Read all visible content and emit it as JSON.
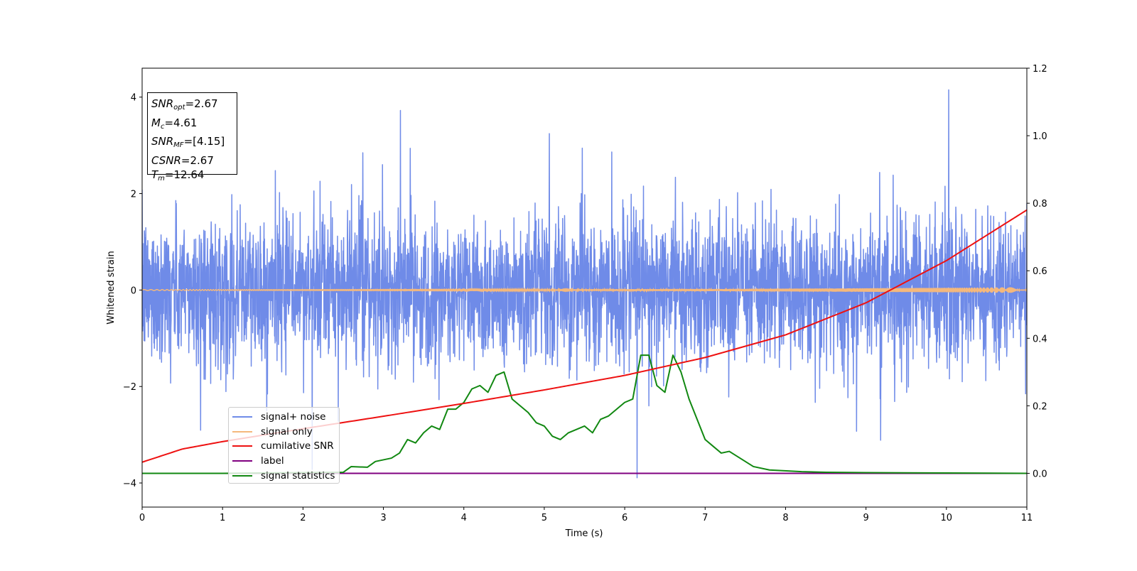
{
  "chart_data": {
    "type": "line",
    "xlabel": "Time (s)",
    "ylabel": "Whitened strain",
    "xlim": [
      0,
      11
    ],
    "ylim_left": [
      -4.5,
      4.6
    ],
    "ylim_right": [
      -0.1,
      1.2
    ],
    "x_ticks": [
      "0",
      "1",
      "2",
      "3",
      "4",
      "5",
      "6",
      "7",
      "8",
      "9",
      "10",
      "11"
    ],
    "y_left_ticks": [
      {
        "value": 4,
        "label": "4"
      },
      {
        "value": 2,
        "label": "2"
      },
      {
        "value": 0,
        "label": "0"
      },
      {
        "value": -2,
        "label": "−2"
      },
      {
        "value": -4,
        "label": "−4"
      }
    ],
    "y_right_ticks": [
      {
        "value": 1.2,
        "label": "1.2"
      },
      {
        "value": 1.0,
        "label": "1.0"
      },
      {
        "value": 0.8,
        "label": "0.8"
      },
      {
        "value": 0.6,
        "label": "0.6"
      },
      {
        "value": 0.4,
        "label": "0.4"
      },
      {
        "value": 0.2,
        "label": "0.2"
      },
      {
        "value": 0.0,
        "label": "0.0"
      }
    ],
    "legend_placement": "lower-left",
    "series": [
      {
        "name": "signal+ noise",
        "axis": "left",
        "color": "#6f8be8",
        "kind": "noise",
        "std": 1.0,
        "range": [
          -4.1,
          4.15
        ]
      },
      {
        "name": "signal only",
        "axis": "left",
        "color": "#f4b87c",
        "kind": "chirp",
        "amplitude_start": 0.01,
        "amplitude_end": 0.06
      },
      {
        "name": "cumilative SNR",
        "axis": "right",
        "color": "#ee1111",
        "x": [
          0,
          0.5,
          1,
          2,
          3,
          4,
          5,
          6,
          7,
          8,
          9,
          10,
          11
        ],
        "y": [
          0.033,
          0.072,
          0.094,
          0.132,
          0.169,
          0.207,
          0.247,
          0.29,
          0.343,
          0.41,
          0.505,
          0.63,
          0.78
        ]
      },
      {
        "name": "label",
        "axis": "right",
        "color": "#800080",
        "x": [
          0,
          11
        ],
        "y": [
          0,
          0
        ]
      },
      {
        "name": "signal statistics",
        "axis": "right",
        "color": "#118811",
        "x": [
          0,
          1,
          2,
          2.5,
          2.6,
          2.8,
          2.9,
          3.1,
          3.2,
          3.3,
          3.4,
          3.5,
          3.6,
          3.7,
          3.8,
          3.9,
          4.0,
          4.1,
          4.2,
          4.3,
          4.4,
          4.5,
          4.6,
          4.7,
          4.8,
          4.9,
          5.0,
          5.1,
          5.2,
          5.3,
          5.4,
          5.5,
          5.6,
          5.7,
          5.8,
          5.9,
          6.0,
          6.1,
          6.2,
          6.3,
          6.4,
          6.5,
          6.6,
          6.7,
          6.8,
          6.9,
          7.0,
          7.1,
          7.2,
          7.3,
          7.4,
          7.6,
          7.8,
          8.2,
          8.5,
          9,
          10,
          11
        ],
        "y": [
          0,
          0,
          0.002,
          0.003,
          0.02,
          0.018,
          0.035,
          0.045,
          0.06,
          0.1,
          0.09,
          0.12,
          0.14,
          0.13,
          0.19,
          0.19,
          0.21,
          0.25,
          0.26,
          0.24,
          0.29,
          0.3,
          0.22,
          0.2,
          0.18,
          0.15,
          0.14,
          0.11,
          0.1,
          0.12,
          0.13,
          0.14,
          0.12,
          0.16,
          0.17,
          0.19,
          0.21,
          0.22,
          0.35,
          0.35,
          0.26,
          0.24,
          0.35,
          0.3,
          0.22,
          0.16,
          0.1,
          0.08,
          0.06,
          0.065,
          0.05,
          0.02,
          0.01,
          0.005,
          0.003,
          0.002,
          0.001,
          0
        ]
      }
    ],
    "annotation": {
      "rows": [
        {
          "main": "SNR",
          "sub": "opt",
          "value": "=2.67"
        },
        {
          "main": "M",
          "sub": "c",
          "value": "=4.61"
        },
        {
          "main": "SNR",
          "sub": "MF",
          "value": "=[4.15]"
        },
        {
          "main": "CSNR",
          "sub": "",
          "value": "=2.67"
        },
        {
          "main": "T",
          "sub": "m",
          "value": "=12.64"
        }
      ]
    }
  }
}
